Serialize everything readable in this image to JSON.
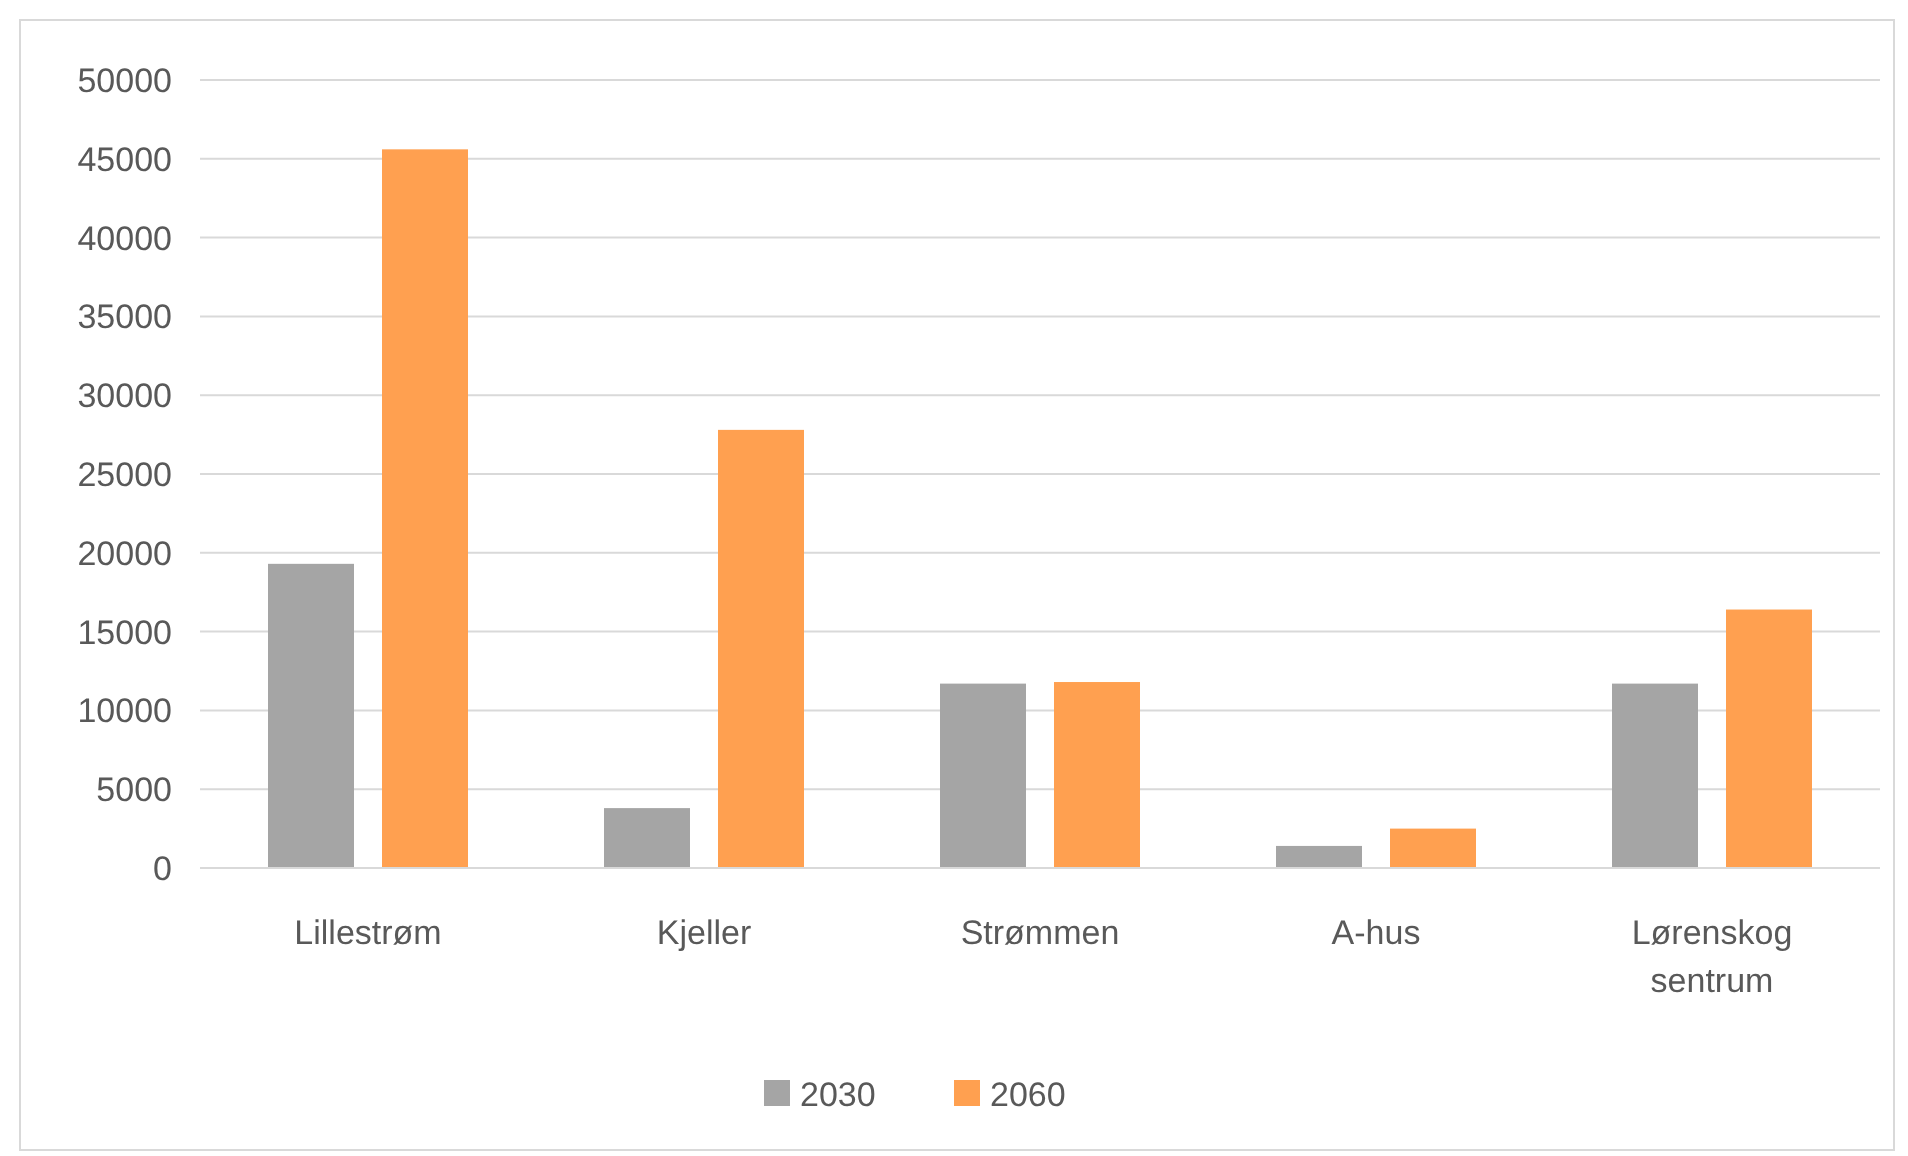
{
  "chart_data": {
    "type": "bar",
    "categories": [
      "Lillestrøm",
      "Kjeller",
      "Strømmen",
      "A-hus",
      "Lørenskog sentrum"
    ],
    "series": [
      {
        "name": "2030",
        "color": "#a5a5a5",
        "values": [
          19300,
          3800,
          11700,
          1400,
          11700
        ]
      },
      {
        "name": "2060",
        "color": "#ffa050",
        "values": [
          45600,
          27800,
          11800,
          2500,
          16400
        ]
      }
    ],
    "ylim": [
      0,
      50000
    ],
    "yticks": [
      0,
      5000,
      10000,
      15000,
      20000,
      25000,
      30000,
      35000,
      40000,
      45000,
      50000
    ],
    "grid": "y",
    "legend": "bottom"
  }
}
